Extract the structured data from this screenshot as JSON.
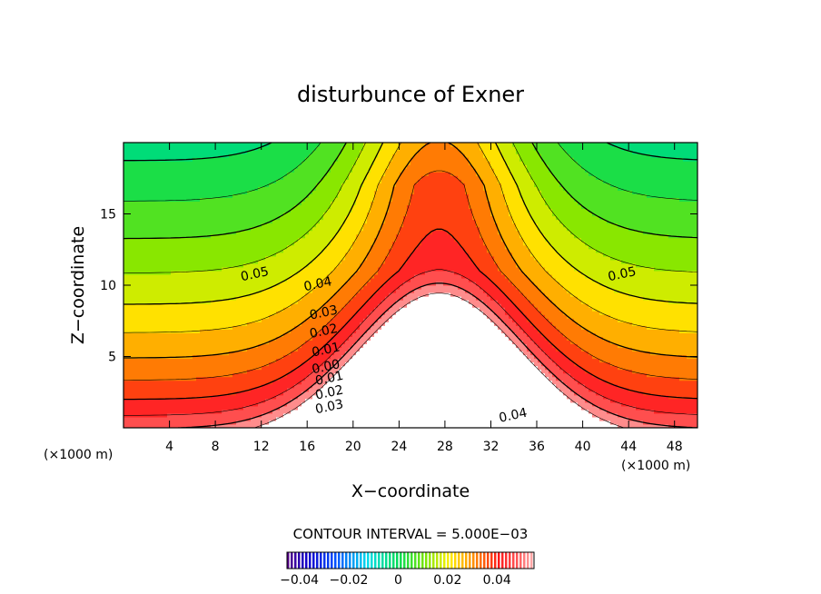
{
  "chart_data": {
    "type": "contour",
    "title": "disturbunce of Exner",
    "xlabel": "X−coordinate",
    "ylabel": "Z−coordinate",
    "x_unit_note": "(×1000 m)",
    "y_unit_note": "(×1000 m)",
    "xlim": [
      0,
      50
    ],
    "ylim": [
      0,
      20
    ],
    "x_ticks": [
      4,
      8,
      12,
      16,
      20,
      24,
      28,
      32,
      36,
      40,
      44,
      48
    ],
    "y_ticks": [
      5,
      10,
      15
    ],
    "contour_interval_text": "CONTOUR INTERVAL = 5.000E−03",
    "contour_interval": 0.005,
    "value_range": [
      -0.045,
      0.055
    ],
    "contour_labels": [
      {
        "text": "0.05",
        "x": 11.5,
        "z": 10.5
      },
      {
        "text": "0.05",
        "x": 43.5,
        "z": 10.5
      },
      {
        "text": "0.04",
        "x": 17.0,
        "z": 9.8
      },
      {
        "text": "0.03",
        "x": 17.5,
        "z": 7.8
      },
      {
        "text": "0.02",
        "x": 17.5,
        "z": 6.5
      },
      {
        "text": "0.01",
        "x": 17.7,
        "z": 5.2
      },
      {
        "text": "0.00",
        "x": 17.7,
        "z": 4.0
      },
      {
        "text": "0.01",
        "x": 18.0,
        "z": 3.2
      },
      {
        "text": "0.02",
        "x": 18.0,
        "z": 2.2
      },
      {
        "text": "0.03",
        "x": 18.0,
        "z": 1.2
      },
      {
        "text": "0.04",
        "x": 34.0,
        "z": 0.6
      }
    ],
    "colorbar": {
      "ticks": [
        -0.04,
        -0.02,
        0,
        0.02,
        0.04
      ],
      "tick_labels": [
        "−0.04",
        "−0.02",
        "0",
        "0.02",
        "0.04"
      ]
    },
    "grid": false
  }
}
